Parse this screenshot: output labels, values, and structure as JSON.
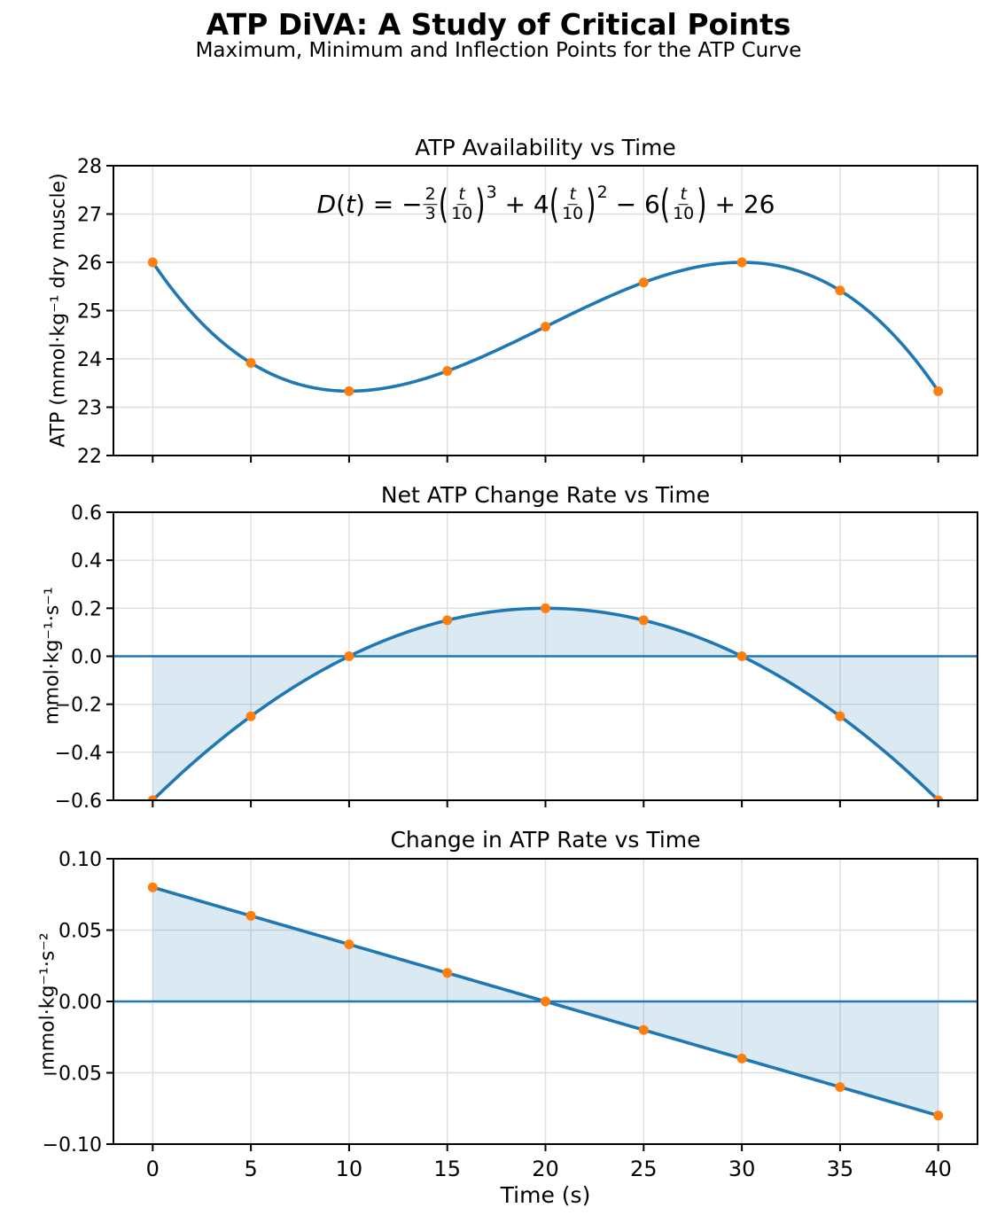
{
  "header": {
    "suptitle": "ATP DiVA: A Study of Critical Points",
    "subtitle": "Maximum, Minimum and Inflection Points for the ATP Curve"
  },
  "palette": {
    "line": "#1f77b4",
    "marker": "#ff7f0e",
    "fill": "rgba(31,119,180,0.16)",
    "grid": "#dedede",
    "spine": "#000000",
    "text": "#000000"
  },
  "x_axis": {
    "label": "Time (s)",
    "lim": [
      -2,
      42
    ],
    "ticks": [
      {
        "v": 0,
        "t": "0"
      },
      {
        "v": 5,
        "t": "5"
      },
      {
        "v": 10,
        "t": "10"
      },
      {
        "v": 15,
        "t": "15"
      },
      {
        "v": 20,
        "t": "20"
      },
      {
        "v": 25,
        "t": "25"
      },
      {
        "v": 30,
        "t": "30"
      },
      {
        "v": 35,
        "t": "35"
      },
      {
        "v": 40,
        "t": "40"
      }
    ]
  },
  "chart_data": [
    {
      "type": "line",
      "title": "ATP Availability vs Time",
      "ylabel": "ATP (mmol·kg⁻¹ dry muscle)",
      "ylim": [
        22,
        28
      ],
      "yticks": [
        {
          "v": 28,
          "t": "28"
        },
        {
          "v": 27,
          "t": "27"
        },
        {
          "v": 26,
          "t": "26"
        },
        {
          "v": 25,
          "t": "25"
        },
        {
          "v": 24,
          "t": "24"
        },
        {
          "v": 23,
          "t": "23"
        },
        {
          "v": 22,
          "t": "22"
        }
      ],
      "x": [
        0,
        5,
        10,
        15,
        20,
        25,
        30,
        35,
        40
      ],
      "y": [
        26.0,
        23.9167,
        23.3333,
        23.75,
        24.6667,
        25.5833,
        26.0,
        25.4167,
        23.3333
      ],
      "poly_u": [
        -0.6666666667,
        4,
        -6,
        26
      ],
      "fill_to_zero": false,
      "zero_line": false,
      "annotation": "D(t) = −2⁄3(t/10)³ + 4(t/10)² − 6(t/10) + 26",
      "formula_tokens": [
        {
          "k": "v",
          "x": "D"
        },
        {
          "k": "t",
          "x": "("
        },
        {
          "k": "v",
          "x": "t"
        },
        {
          "k": "t",
          "x": ") = −"
        },
        {
          "k": "f",
          "n": "2",
          "d": "3"
        },
        {
          "k": "p",
          "x": "("
        },
        {
          "k": "f",
          "n": "t",
          "d": "10"
        },
        {
          "k": "p",
          "x": ")"
        },
        {
          "k": "s",
          "x": "3"
        },
        {
          "k": "t",
          "x": " + 4"
        },
        {
          "k": "p",
          "x": "("
        },
        {
          "k": "f",
          "n": "t",
          "d": "10"
        },
        {
          "k": "p",
          "x": ")"
        },
        {
          "k": "s",
          "x": "2"
        },
        {
          "k": "t",
          "x": " − 6"
        },
        {
          "k": "p",
          "x": "("
        },
        {
          "k": "f",
          "n": "t",
          "d": "10"
        },
        {
          "k": "p",
          "x": ")"
        },
        {
          "k": "t",
          "x": " + 26"
        }
      ]
    },
    {
      "type": "line",
      "title": "Net ATP Change Rate vs Time",
      "ylabel": "mmol·kg⁻¹·s⁻¹",
      "ylim": [
        -0.6,
        0.6
      ],
      "yticks": [
        {
          "v": 0.6,
          "t": "0.6"
        },
        {
          "v": 0.4,
          "t": "0.4"
        },
        {
          "v": 0.2,
          "t": "0.2"
        },
        {
          "v": 0.0,
          "t": "0.0"
        },
        {
          "v": -0.2,
          "t": "−0.2"
        },
        {
          "v": -0.4,
          "t": "−0.4"
        },
        {
          "v": -0.6,
          "t": "−0.6"
        }
      ],
      "x": [
        0,
        5,
        10,
        15,
        20,
        25,
        30,
        35,
        40
      ],
      "y": [
        -0.6,
        -0.25,
        0.0,
        0.15,
        0.2,
        0.15,
        0.0,
        -0.25,
        -0.6
      ],
      "poly_u": [
        -0.2,
        0.8,
        -0.6
      ],
      "fill_to_zero": true,
      "zero_line": true
    },
    {
      "type": "line",
      "title": "Change in ATP Rate vs Time",
      "ylabel": "mmol·kg⁻¹·s⁻²",
      "ylim": [
        -0.1,
        0.1
      ],
      "yticks": [
        {
          "v": 0.1,
          "t": "0.10"
        },
        {
          "v": 0.05,
          "t": "0.05"
        },
        {
          "v": 0.0,
          "t": "0.00"
        },
        {
          "v": -0.05,
          "t": "−0.05"
        },
        {
          "v": -0.1,
          "t": "−0.10"
        }
      ],
      "x": [
        0,
        5,
        10,
        15,
        20,
        25,
        30,
        35,
        40
      ],
      "y": [
        0.08,
        0.06,
        0.04,
        0.02,
        0.0,
        -0.02,
        -0.04,
        -0.06,
        -0.08
      ],
      "poly_u": [
        -0.04,
        0.08
      ],
      "fill_to_zero": true,
      "zero_line": true
    }
  ]
}
